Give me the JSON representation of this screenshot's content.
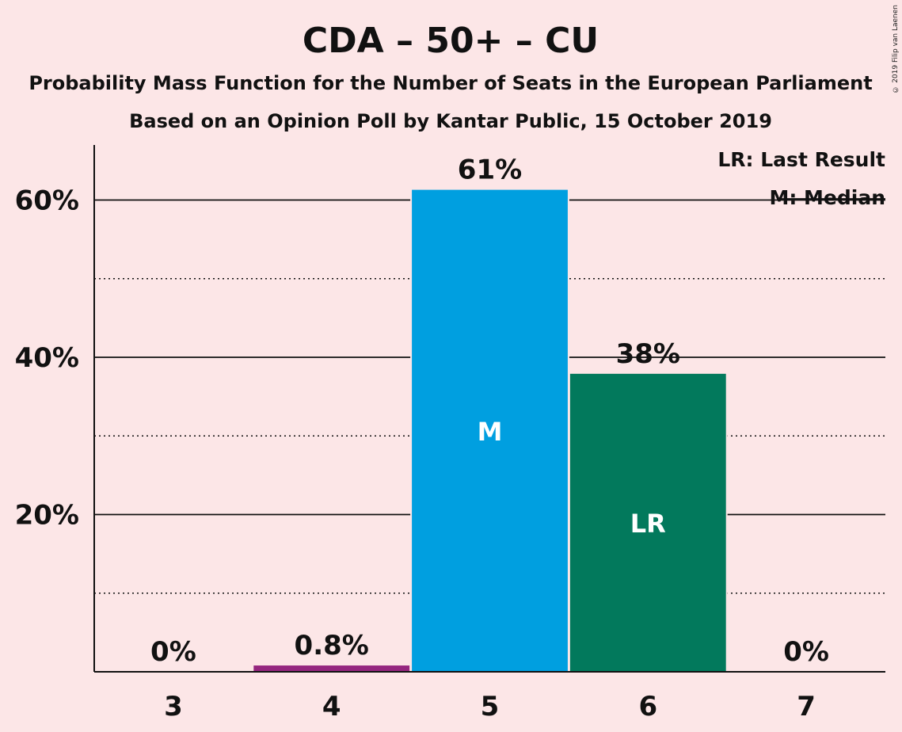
{
  "chart_data": {
    "type": "bar",
    "title": "CDA – 50+ – CU",
    "subtitle1": "Probability Mass Function for the Number of Seats in the European Parliament",
    "subtitle2": "Based on an Opinion Poll by Kantar Public, 15 October 2019",
    "categories": [
      "3",
      "4",
      "5",
      "6",
      "7"
    ],
    "values": [
      0,
      0.8,
      61.3,
      37.9,
      0
    ],
    "value_labels": [
      "0%",
      "0.8%",
      "61%",
      "38%",
      "0%"
    ],
    "bar_colors": [
      "#95267f",
      "#95267f",
      "#009fe0",
      "#02795c",
      "#95267f"
    ],
    "bar_marks": [
      "",
      "",
      "M",
      "LR",
      ""
    ],
    "ylim": [
      0,
      67
    ],
    "y_major_ticks": [
      20,
      40,
      60
    ],
    "y_major_labels": [
      "20%",
      "40%",
      "60%"
    ],
    "y_minor_ticks": [
      10,
      30,
      50
    ],
    "grid": true,
    "legend": {
      "position": "top-right",
      "lr_text": "LR: Last Result",
      "m_text": "M: Median"
    }
  },
  "copyright": "© 2019 Filip van Laenen"
}
